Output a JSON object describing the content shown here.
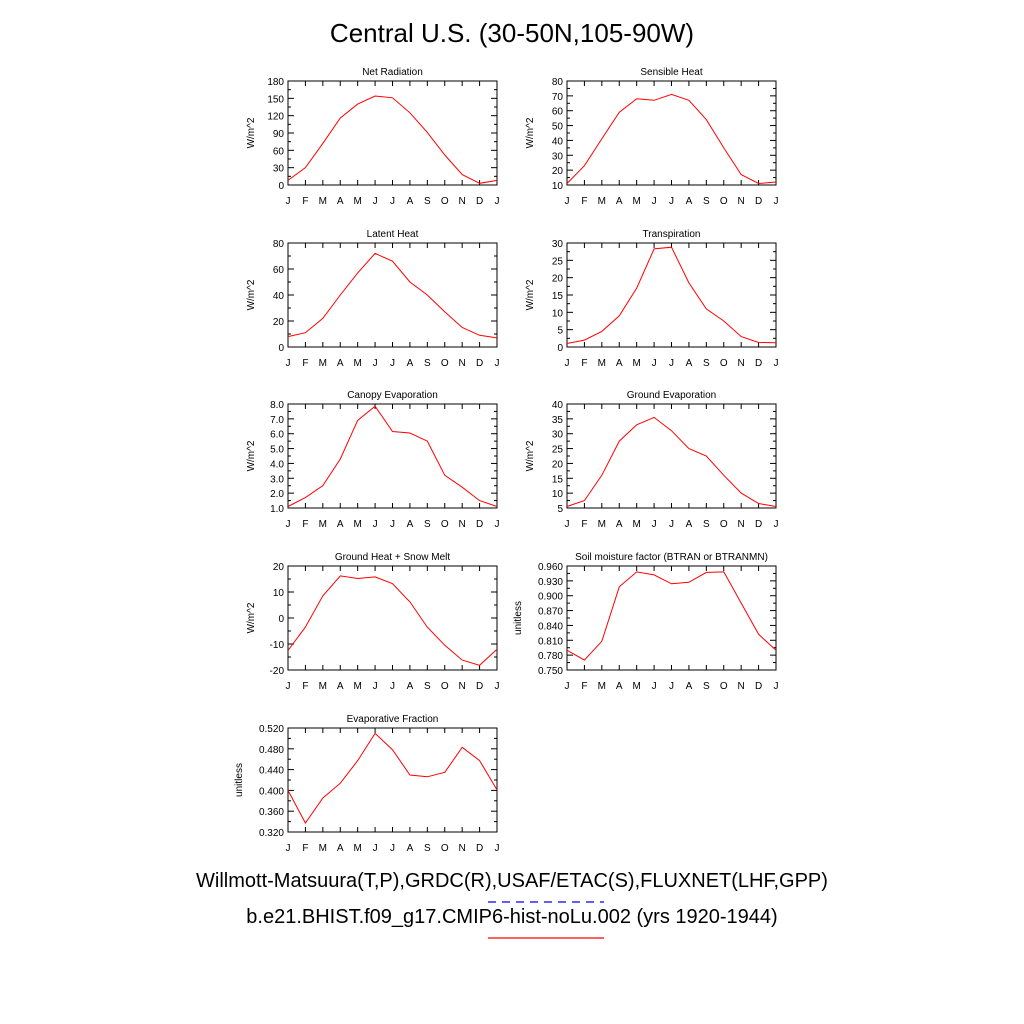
{
  "title": "Central U.S. (30-50N,105-90W)",
  "month_labels": [
    "J",
    "F",
    "M",
    "A",
    "M",
    "J",
    "J",
    "A",
    "S",
    "O",
    "N",
    "D",
    "J"
  ],
  "colors": {
    "model": "#ff0000",
    "obs": "#0000ff",
    "axis": "#000000"
  },
  "legend": {
    "observations": "Willmott-Matsuura(T,P),GRDC(R),USAF/ETAC(S),FLUXNET(LHF,GPP)",
    "model": "b.e21.BHIST.f09_g17.CMIP6-hist-noLu.002 (yrs 1920-1944)"
  },
  "chart_data": [
    {
      "type": "line",
      "title": "Net Radiation",
      "ylabel": "W/m^2",
      "ylim": [
        0,
        180
      ],
      "yticks": [
        "0",
        "30",
        "60",
        "90",
        "120",
        "150",
        "180"
      ],
      "series": [
        {
          "values": [
            8,
            30,
            72,
            116,
            140,
            154,
            151,
            125,
            91,
            52,
            18,
            3,
            8
          ]
        }
      ]
    },
    {
      "type": "line",
      "title": "Sensible Heat",
      "ylabel": "W/m^2",
      "ylim": [
        10,
        80
      ],
      "yticks": [
        "10",
        "20",
        "30",
        "40",
        "50",
        "60",
        "70",
        "80"
      ],
      "series": [
        {
          "values": [
            11,
            23,
            41,
            59,
            68,
            67,
            71,
            67,
            54,
            35,
            17,
            11,
            12
          ]
        }
      ]
    },
    {
      "type": "line",
      "title": "Latent Heat",
      "ylabel": "W/m^2",
      "ylim": [
        0,
        80
      ],
      "yticks": [
        "0",
        "20",
        "40",
        "60",
        "80"
      ],
      "series": [
        {
          "values": [
            8,
            11,
            22,
            40,
            57,
            72,
            66,
            50,
            40,
            27,
            15,
            9,
            7
          ]
        }
      ]
    },
    {
      "type": "line",
      "title": "Transpiration",
      "ylabel": "W/m^2",
      "ylim": [
        0,
        30
      ],
      "yticks": [
        "0",
        "5",
        "10",
        "15",
        "20",
        "25",
        "30"
      ],
      "series": [
        {
          "values": [
            1,
            2,
            4.5,
            9,
            17,
            28.3,
            28.8,
            18.5,
            11,
            7.5,
            3,
            1.3,
            1.2
          ]
        }
      ]
    },
    {
      "type": "line",
      "title": "Canopy Evaporation",
      "ylabel": "W/m^2",
      "ylim": [
        1,
        8
      ],
      "yticks": [
        "1.0",
        "2.0",
        "3.0",
        "4.0",
        "5.0",
        "6.0",
        "7.0",
        "8.0"
      ],
      "series": [
        {
          "values": [
            1.1,
            1.7,
            2.5,
            4.3,
            6.9,
            7.85,
            6.15,
            6.05,
            5.5,
            3.2,
            2.4,
            1.5,
            1.1
          ]
        }
      ]
    },
    {
      "type": "line",
      "title": "Ground Evaporation",
      "ylabel": "W/m^2",
      "ylim": [
        5,
        40
      ],
      "yticks": [
        "5",
        "10",
        "15",
        "20",
        "25",
        "30",
        "35",
        "40"
      ],
      "series": [
        {
          "values": [
            5.5,
            7.5,
            16,
            27.5,
            33,
            35.5,
            31,
            25,
            22.5,
            16,
            10,
            6.5,
            5.5
          ]
        }
      ]
    },
    {
      "type": "line",
      "title": "Ground Heat + Snow Melt",
      "ylabel": "W/m^2",
      "ylim": [
        -20,
        20
      ],
      "yticks": [
        "-20",
        "-10",
        "0",
        "10",
        "20"
      ],
      "series": [
        {
          "values": [
            -12.5,
            -3.5,
            8.5,
            16.2,
            15.2,
            15.8,
            13.2,
            6.2,
            -3.5,
            -10.5,
            -16.2,
            -18.2,
            -12
          ]
        }
      ]
    },
    {
      "type": "line",
      "title": "Soil moisture factor (BTRAN or BTRANMN)",
      "ylabel": "unitless",
      "ylim": [
        0.75,
        0.96
      ],
      "yticks": [
        "0.750",
        "0.780",
        "0.810",
        "0.840",
        "0.870",
        "0.900",
        "0.930",
        "0.960"
      ],
      "series": [
        {
          "values": [
            0.79,
            0.77,
            0.808,
            0.918,
            0.948,
            0.942,
            0.924,
            0.927,
            0.947,
            0.948,
            0.885,
            0.822,
            0.79
          ]
        }
      ]
    },
    {
      "type": "line",
      "title": "Evaporative Fraction",
      "ylabel": "unitless",
      "ylim": [
        0.3,
        0.53
      ],
      "yticks": [
        "0.320",
        "0.360",
        "0.400",
        "0.440",
        "0.480",
        "0.520"
      ],
      "series": [
        {
          "values": [
            0.392,
            0.32,
            0.375,
            0.408,
            0.458,
            0.518,
            0.482,
            0.426,
            0.422,
            0.432,
            0.487,
            0.458,
            0.393
          ]
        }
      ]
    }
  ]
}
